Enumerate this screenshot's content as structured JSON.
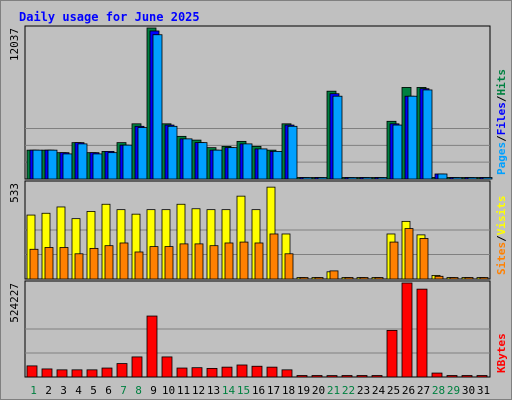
{
  "chart_data": {
    "type": "bar",
    "title": "Daily usage for June 2025",
    "categories": [
      "1",
      "2",
      "3",
      "4",
      "5",
      "6",
      "7",
      "8",
      "9",
      "10",
      "11",
      "12",
      "13",
      "14",
      "15",
      "16",
      "17",
      "18",
      "19",
      "20",
      "21",
      "22",
      "23",
      "24",
      "25",
      "26",
      "27",
      "28",
      "29",
      "30",
      "31"
    ],
    "weekend_days": [
      "1",
      "7",
      "8",
      "14",
      "15",
      "21",
      "22",
      "28",
      "29"
    ],
    "panels": [
      {
        "id": "top",
        "ymax_label": "12037",
        "ymax": 12037,
        "right_label_parts": [
          {
            "text": "Pages",
            "color": "#00a0ff"
          },
          {
            "text": "/",
            "color": "#000000"
          },
          {
            "text": "Files",
            "color": "#0000ff"
          },
          {
            "text": "/",
            "color": "#000000"
          },
          {
            "text": "Hits",
            "color": "#008040"
          }
        ],
        "series": [
          {
            "name": "Hits",
            "color": "#008040",
            "values": [
              2300,
              2300,
              2100,
              2900,
              2100,
              2200,
              2900,
              4400,
              12037,
              4400,
              3400,
              3100,
              2500,
              2600,
              3000,
              2600,
              2300,
              4400,
              0,
              0,
              7000,
              0,
              0,
              0,
              4600,
              7300,
              7300,
              0,
              0,
              0,
              0
            ]
          },
          {
            "name": "Files",
            "color": "#0000ff",
            "values": [
              2300,
              2300,
              2100,
              2900,
              2100,
              2200,
              2700,
              4200,
              11800,
              4300,
              3200,
              2900,
              2300,
              2500,
              2800,
              2400,
              2200,
              4300,
              0,
              0,
              6800,
              0,
              0,
              0,
              4400,
              6600,
              7200,
              400,
              0,
              0,
              0
            ]
          },
          {
            "name": "Pages",
            "color": "#00a0ff",
            "values": [
              2300,
              2300,
              2000,
              2800,
              2000,
              2100,
              2700,
              4100,
              11500,
              4200,
              3200,
              2900,
              2300,
              2500,
              2800,
              2400,
              2200,
              4200,
              0,
              0,
              6600,
              0,
              0,
              0,
              4300,
              6600,
              7100,
              400,
              0,
              0,
              0
            ]
          }
        ]
      },
      {
        "id": "middle",
        "ymax_label": "533",
        "ymax": 533,
        "right_label_parts": [
          {
            "text": "Sites",
            "color": "#ff8000"
          },
          {
            "text": "/",
            "color": "#000000"
          },
          {
            "text": "Visits",
            "color": "#ffff00"
          }
        ],
        "series": [
          {
            "name": "Visits",
            "color": "#ffff00",
            "values": [
              355,
              365,
              400,
              335,
              375,
              415,
              385,
              360,
              385,
              385,
              415,
              390,
              385,
              385,
              460,
              385,
              510,
              250,
              0,
              0,
              40,
              0,
              0,
              0,
              250,
              320,
              245,
              20,
              0,
              0,
              0
            ]
          },
          {
            "name": "Sites",
            "color": "#ff8000",
            "values": [
              165,
              175,
              175,
              140,
              170,
              185,
              200,
              150,
              180,
              180,
              195,
              195,
              185,
              200,
              205,
              200,
              250,
              140,
              0,
              0,
              45,
              0,
              0,
              0,
              205,
              280,
              225,
              15,
              0,
              0,
              0
            ]
          }
        ]
      },
      {
        "id": "bottom",
        "ymax_label": "524227",
        "ymax": 524227,
        "right_label_parts": [
          {
            "text": "KBytes",
            "color": "#ff0000"
          }
        ],
        "series": [
          {
            "name": "KBytes",
            "color": "#ff0000",
            "values": [
              62000,
              45000,
              40000,
              40000,
              40000,
              50000,
              75000,
              112000,
              340000,
              112000,
              50000,
              52000,
              48000,
              55000,
              67000,
              60000,
              55000,
              40000,
              0,
              0,
              8000,
              0,
              0,
              0,
              260000,
              524227,
              490000,
              22000,
              0,
              0,
              0
            ]
          }
        ]
      }
    ],
    "colors": {
      "background": "#c0c0c0",
      "grid": "#808080",
      "title": "#0000ff",
      "weekday_label": "#000000",
      "weekend_label": "#008040"
    }
  }
}
